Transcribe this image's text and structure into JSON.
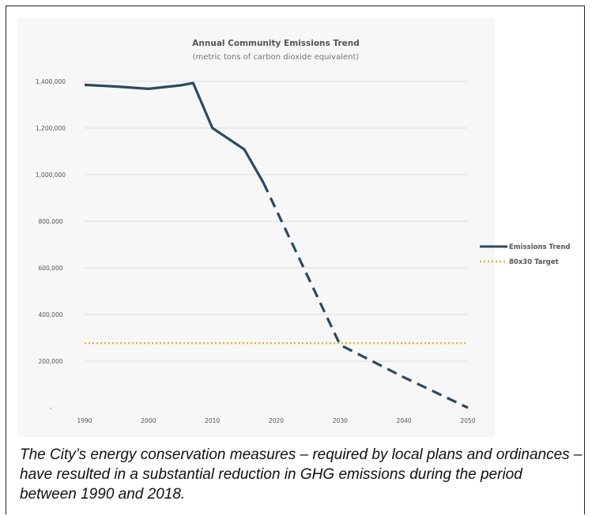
{
  "caption": "The City’s energy conservation measures – required by local plans and ordinances – have resulted in a substantial reduction in GHG emissions during the period between 1990 and 2018.",
  "chart_data": {
    "type": "line",
    "title": "Annual Community Emissions Trend",
    "subtitle": "(metric tons of carbon dioxide equivalent)",
    "xlabel": "",
    "ylabel": "",
    "x_ticks": [
      "1990",
      "2000",
      "2010",
      "2020",
      "2030",
      "2040",
      "2050"
    ],
    "y_ticks": [
      "1,400,000",
      "1,200,000",
      "1,000,000",
      "800,000",
      "600,000",
      "400,000",
      "200,000",
      "-"
    ],
    "xlim": [
      1990,
      2050
    ],
    "ylim": [
      0,
      1400000
    ],
    "grid": true,
    "legend": "right",
    "series": [
      {
        "name": "Emissions Trend",
        "color": "#2b4a5e",
        "style": "solid",
        "x": [
          1990,
          1995,
          2000,
          2005,
          2007,
          2010,
          2015,
          2018
        ],
        "y": [
          1385000,
          1378000,
          1368000,
          1383000,
          1393000,
          1200000,
          1108000,
          965000
        ]
      },
      {
        "name": "Emissions Trend",
        "color": "#2b4a5e",
        "style": "dashed",
        "x": [
          2018,
          2030,
          2040,
          2050
        ],
        "y": [
          965000,
          270000,
          130000,
          0
        ]
      },
      {
        "name": "80x30 Target",
        "color": "#e8b526",
        "style": "dotted",
        "x": [
          1990,
          2050
        ],
        "y": [
          277000,
          277000
        ]
      }
    ],
    "legend_entries": [
      {
        "label": "Emissions Trend",
        "color": "#2b4a5e",
        "style": "solid"
      },
      {
        "label": "80x30 Target",
        "color": "#e8b526",
        "style": "dotted"
      }
    ]
  }
}
